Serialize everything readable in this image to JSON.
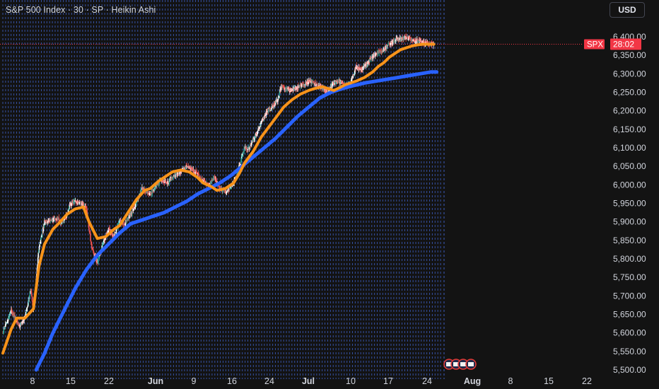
{
  "header": {
    "title": "S&P 500 Index · 30 · SP · Heikin Ashi"
  },
  "currency_button": {
    "label": "USD"
  },
  "price_tag": {
    "symbol": "SPX",
    "countdown": "28:02",
    "value": 6380
  },
  "colors": {
    "background": "#131313",
    "grid_vertical": "#3b5bbd",
    "ema_fast": "#f7931a",
    "ema_slow": "#2962ff",
    "candle_up": "#ffffff",
    "candle_up_alt": "#26a69a",
    "candle_down": "#ef5350",
    "price_line": "#f23645",
    "axis_text": "#d1d4dc"
  },
  "chart_data": {
    "type": "line",
    "title": "S&P 500 Index · 30 · SP · Heikin Ashi",
    "style": "heikin_ashi_candles",
    "xlabel": "",
    "ylabel": "",
    "ylim": [
      5500,
      6450
    ],
    "y_ticks": [
      "5,500.00",
      "5,550.00",
      "5,600.00",
      "5,650.00",
      "5,700.00",
      "5,750.00",
      "5,800.00",
      "5,850.00",
      "5,900.00",
      "5,950.00",
      "6,000.00",
      "6,050.00",
      "6,100.00",
      "6,150.00",
      "6,200.00",
      "6,250.00",
      "6,300.00",
      "6,350.00",
      "6,400.00"
    ],
    "x_ticks": [
      "8",
      "15",
      "22",
      "Jun",
      "9",
      "16",
      "24",
      "Jul",
      "10",
      "17",
      "24",
      "Aug",
      "8",
      "15",
      "22"
    ],
    "x_tick_bold": [
      "Jun",
      "Jul",
      "Aug"
    ],
    "series": [
      {
        "name": "",
        "kind": "price",
        "x": [
          0,
          3,
          6,
          8,
          10,
          11,
          13,
          15,
          18,
          20,
          21,
          23,
          24,
          26,
          28,
          30,
          31,
          32,
          34,
          36,
          38,
          40,
          42,
          44,
          46,
          48,
          50,
          53,
          55,
          57,
          59,
          61,
          63,
          66,
          68,
          70,
          72,
          74,
          76,
          78,
          80,
          82,
          84,
          85,
          87,
          88,
          90,
          92,
          93,
          95,
          97,
          99,
          100,
          103,
          105,
          107,
          109,
          111,
          113,
          115,
          117,
          119,
          121,
          123,
          125,
          126,
          127,
          129,
          131,
          133,
          135,
          137,
          139,
          141,
          143,
          145,
          147,
          149,
          151,
          153,
          155
        ],
        "values": [
          5600,
          5660,
          5620,
          5640,
          5720,
          5660,
          5830,
          5900,
          5905,
          5910,
          5895,
          5920,
          5945,
          5955,
          5950,
          5940,
          5880,
          5830,
          5790,
          5840,
          5880,
          5860,
          5900,
          5895,
          5920,
          5950,
          5990,
          5975,
          5995,
          6015,
          6005,
          6020,
          6030,
          6050,
          6040,
          6030,
          6010,
          6000,
          6020,
          5990,
          5980,
          5995,
          6020,
          6050,
          6100,
          6095,
          6120,
          6150,
          6170,
          6200,
          6210,
          6230,
          6265,
          6255,
          6260,
          6270,
          6275,
          6280,
          6270,
          6260,
          6250,
          6275,
          6280,
          6270,
          6275,
          6295,
          6320,
          6310,
          6330,
          6345,
          6360,
          6365,
          6380,
          6390,
          6395,
          6398,
          6392,
          6390,
          6385,
          6382,
          6380
        ]
      },
      {
        "name": "",
        "kind": "ema_fast",
        "x": [
          0,
          3,
          5,
          8,
          11,
          13,
          15,
          18,
          20,
          23,
          26,
          29,
          31,
          34,
          37,
          40,
          42,
          45,
          48,
          51,
          53,
          56,
          59,
          61,
          64,
          67,
          70,
          72,
          75,
          77,
          80,
          83,
          85,
          87,
          90,
          93,
          96,
          99,
          101,
          104,
          107,
          110,
          112,
          115,
          117,
          119,
          121,
          123,
          125,
          127,
          130,
          133,
          135,
          137,
          139,
          141,
          143,
          145,
          147,
          149,
          151,
          153,
          155
        ],
        "values": [
          5545,
          5610,
          5640,
          5640,
          5665,
          5780,
          5840,
          5880,
          5895,
          5920,
          5935,
          5940,
          5900,
          5855,
          5860,
          5880,
          5890,
          5925,
          5960,
          5985,
          5990,
          6010,
          6025,
          6035,
          6040,
          6035,
          6020,
          6005,
          5995,
          5985,
          5990,
          6005,
          6030,
          6060,
          6090,
          6130,
          6160,
          6190,
          6210,
          6230,
          6245,
          6255,
          6260,
          6265,
          6260,
          6255,
          6262,
          6270,
          6275,
          6280,
          6290,
          6305,
          6320,
          6330,
          6345,
          6355,
          6365,
          6370,
          6375,
          6378,
          6380,
          6380,
          6380
        ]
      },
      {
        "name": "",
        "kind": "ema_slow",
        "x": [
          12,
          15,
          18,
          22,
          26,
          30,
          34,
          38,
          42,
          46,
          50,
          54,
          58,
          62,
          66,
          70,
          74,
          78,
          82,
          86,
          90,
          94,
          98,
          102,
          106,
          110,
          114,
          118,
          122,
          126,
          130,
          134,
          138,
          142,
          146,
          150,
          154,
          156
        ],
        "values": [
          5500,
          5545,
          5600,
          5660,
          5720,
          5770,
          5810,
          5840,
          5870,
          5895,
          5905,
          5915,
          5925,
          5940,
          5955,
          5975,
          5990,
          6005,
          6025,
          6050,
          6075,
          6100,
          6125,
          6155,
          6185,
          6210,
          6235,
          6250,
          6260,
          6268,
          6275,
          6280,
          6285,
          6290,
          6295,
          6300,
          6305,
          6305
        ]
      }
    ],
    "axis_range_x": [
      0,
      209
    ],
    "grid": "vertical-dashed",
    "legend": "none"
  }
}
